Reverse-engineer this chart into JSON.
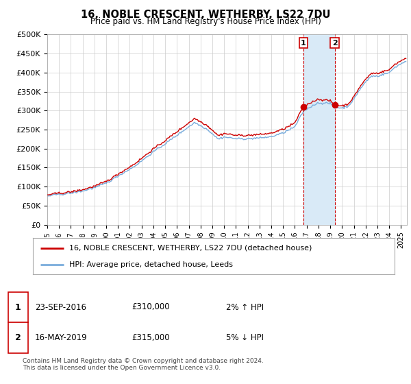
{
  "title": "16, NOBLE CRESCENT, WETHERBY, LS22 7DU",
  "subtitle": "Price paid vs. HM Land Registry's House Price Index (HPI)",
  "ylabel_ticks": [
    "£0",
    "£50K",
    "£100K",
    "£150K",
    "£200K",
    "£250K",
    "£300K",
    "£350K",
    "£400K",
    "£450K",
    "£500K"
  ],
  "ytick_values": [
    0,
    50000,
    100000,
    150000,
    200000,
    250000,
    300000,
    350000,
    400000,
    450000,
    500000
  ],
  "ylim": [
    0,
    500000
  ],
  "background_color": "#ffffff",
  "grid_color": "#cccccc",
  "hpi_color": "#7aaddc",
  "price_color": "#cc0000",
  "shade_color": "#d9eaf7",
  "transaction1": {
    "date": "23-SEP-2016",
    "price": 310000,
    "pct": "2%",
    "direction": "↑",
    "label": "1"
  },
  "transaction2": {
    "date": "16-MAY-2019",
    "price": 315000,
    "pct": "5%",
    "direction": "↓",
    "label": "2"
  },
  "legend_label1": "16, NOBLE CRESCENT, WETHERBY, LS22 7DU (detached house)",
  "legend_label2": "HPI: Average price, detached house, Leeds",
  "footer": "Contains HM Land Registry data © Crown copyright and database right 2024.\nThis data is licensed under the Open Government Licence v3.0.",
  "xlim_start": 1995.0,
  "xlim_end": 2025.5,
  "xtick_years": [
    1995,
    1996,
    1997,
    1998,
    1999,
    2000,
    2001,
    2002,
    2003,
    2004,
    2005,
    2006,
    2007,
    2008,
    2009,
    2010,
    2011,
    2012,
    2013,
    2014,
    2015,
    2016,
    2017,
    2018,
    2019,
    2020,
    2021,
    2022,
    2023,
    2024,
    2025
  ]
}
